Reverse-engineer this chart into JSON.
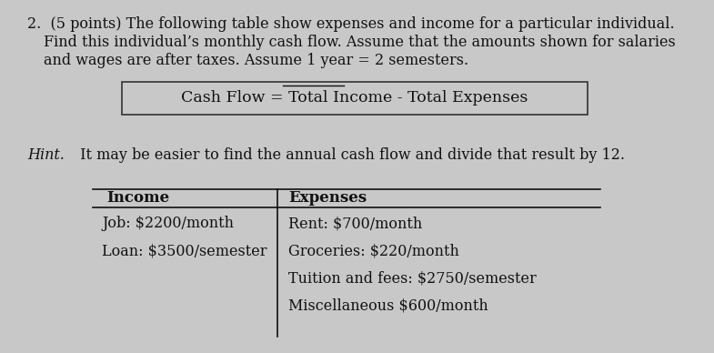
{
  "bg_color": "#c8c8c8",
  "text_color": "#111111",
  "formula": "Cash Flow = Total Income - Total Expenses",
  "hint_italic": "Hint.",
  "hint_rest": " It may be easier to find the annual cash flow and divide that result by 12.",
  "income_header": "Income",
  "expenses_header": "Expenses",
  "income_items": [
    "Job: $2200/month",
    "Loan: $3500/semester"
  ],
  "expenses_items": [
    "Rent: $700/month",
    "Groceries: $220/month",
    "Tuition and fees: $2750/semester",
    "Miscellaneous $600/month"
  ],
  "font_size": 11.5,
  "font_size_formula": 12.5,
  "font_size_hint": 11.5
}
